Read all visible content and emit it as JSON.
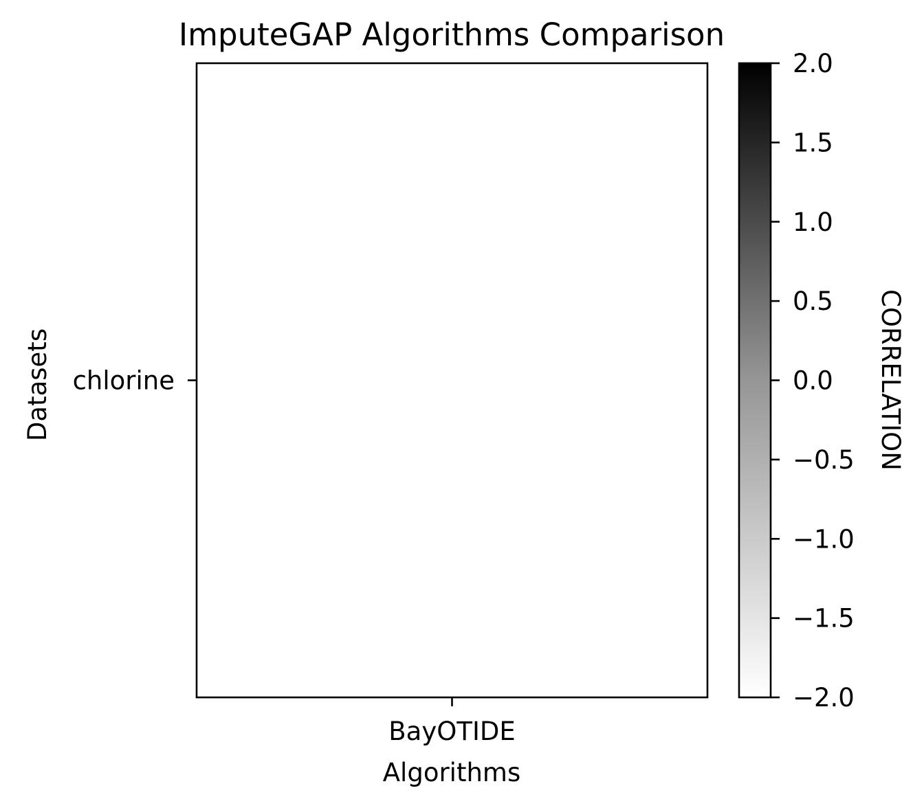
{
  "chart_data": {
    "type": "heatmap",
    "title": "ImputeGAP Algorithms Comparison",
    "xlabel": "Algorithms",
    "ylabel": "Datasets",
    "x_categories": [
      "BayOTIDE"
    ],
    "y_categories": [
      "chlorine"
    ],
    "values": [
      [
        null
      ]
    ],
    "colorbar": {
      "label": "CORRELATION",
      "range": [
        -2.0,
        2.0
      ],
      "ticks": [
        2.0,
        1.5,
        1.0,
        0.5,
        0.0,
        -0.5,
        -1.0,
        -1.5,
        -2.0
      ],
      "tick_labels": [
        "2.0",
        "1.5",
        "1.0",
        "0.5",
        "0.0",
        "−0.5",
        "−1.0",
        "−1.5",
        "−2.0"
      ],
      "colormap": "Greys",
      "color_low": "#ffffff",
      "color_high": "#000000"
    },
    "grid": false
  }
}
